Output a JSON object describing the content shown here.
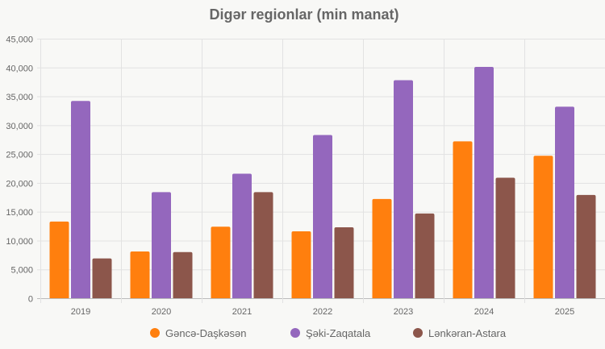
{
  "chart_data": {
    "type": "bar",
    "title": "Digər regionlar (min manat)",
    "xlabel": "",
    "ylabel": "",
    "ylim": [
      0,
      45000
    ],
    "yticks": [
      "0",
      "5,000",
      "10,000",
      "15,000",
      "20,000",
      "25,000",
      "30,000",
      "35,000",
      "40,000",
      "45,000"
    ],
    "categories": [
      "2019",
      "2020",
      "2021",
      "2022",
      "2023",
      "2024",
      "2025"
    ],
    "grid": true,
    "legend_position": "bottom",
    "series": [
      {
        "name": "Gəncə-Daşkəsən",
        "color": "#ff7f0e",
        "values": [
          13300,
          8100,
          12400,
          11600,
          17200,
          27200,
          24700
        ]
      },
      {
        "name": "Şəki-Zaqatala",
        "color": "#9467bd",
        "values": [
          34200,
          18400,
          21600,
          28300,
          37800,
          40100,
          33200
        ]
      },
      {
        "name": "Lənkəran-Astara",
        "color": "#8c564b",
        "values": [
          6900,
          8000,
          18400,
          12300,
          14700,
          20900,
          17900
        ]
      }
    ]
  }
}
